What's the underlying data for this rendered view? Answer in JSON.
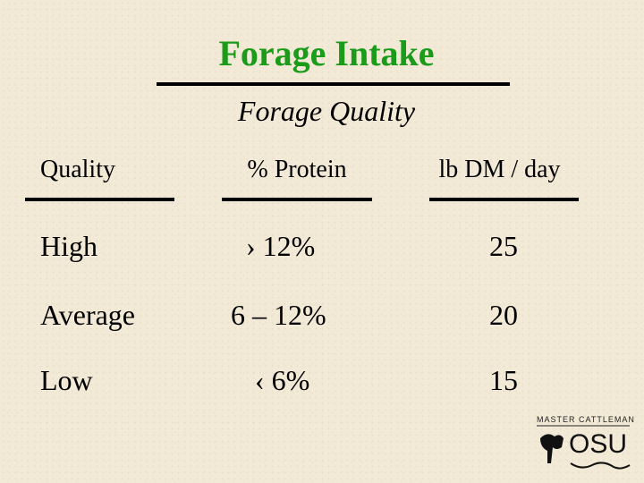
{
  "header": {
    "title": "Forage Intake",
    "subtitle": "Forage Quality"
  },
  "table": {
    "columns": [
      "Quality",
      "% Protein",
      "lb DM / day"
    ],
    "rows": [
      [
        "High",
        "› 12%",
        25
      ],
      [
        "Average",
        "6 – 12%",
        20
      ],
      [
        "Low",
        "‹ 6%",
        15
      ]
    ]
  },
  "logo": {
    "top": "MASTER CATTLEMAN",
    "mark": "OSU"
  }
}
